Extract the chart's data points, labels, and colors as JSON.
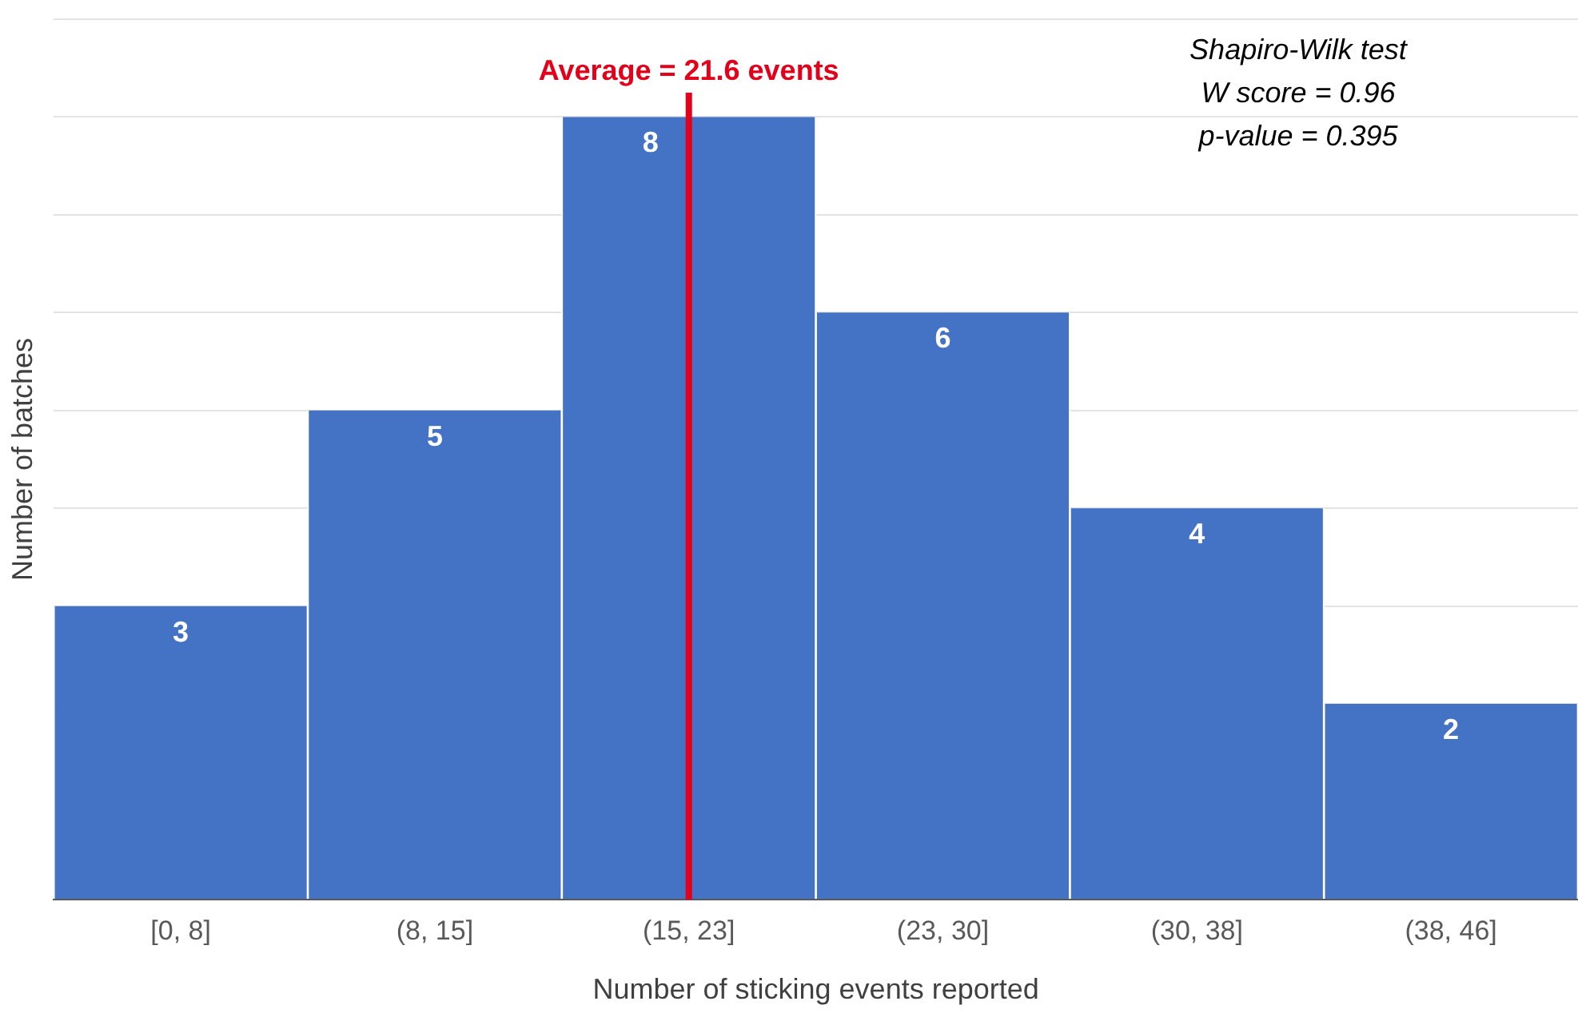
{
  "chart_data": {
    "type": "bar",
    "xlabel": "Number of sticking events reported",
    "ylabel": "Number of batches",
    "categories": [
      "[0, 8]",
      "(8, 15]",
      "(15, 23]",
      "(23, 30]",
      "(30, 38]",
      "(38, 46]"
    ],
    "values": [
      3,
      5,
      8,
      6,
      4,
      2
    ],
    "color": "#4472c4",
    "ylim": [
      0,
      9
    ],
    "tick_labels": "x",
    "grid": "y",
    "data_labels": true,
    "ref_lines": [
      {
        "axis": "x",
        "value": "(15, 23]",
        "label": "Average = 21.6 events",
        "color": "#e3001b"
      }
    ],
    "annotations": [
      "Shapiro-Wilk test",
      "W score = 0.96",
      "p-value = 0.395"
    ]
  }
}
